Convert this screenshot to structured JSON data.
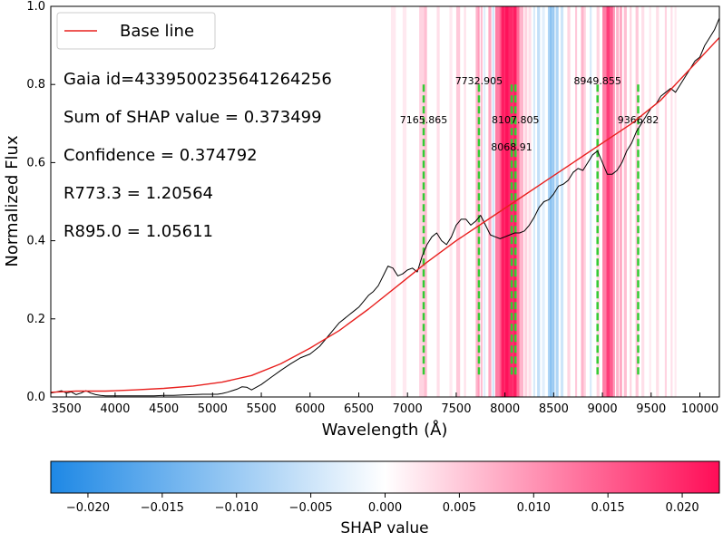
{
  "chart_data": {
    "type": "line",
    "xlabel": "Wavelength (Å)",
    "ylabel": "Normalized Flux",
    "xlim": [
      3340,
      10200
    ],
    "ylim": [
      0.0,
      1.0
    ],
    "x_ticks": [
      3500,
      4000,
      4500,
      5000,
      5500,
      6000,
      6500,
      7000,
      7500,
      8000,
      8500,
      9000,
      9500,
      10000
    ],
    "y_ticks": [
      0.0,
      0.2,
      0.4,
      0.6,
      0.8,
      1.0
    ],
    "y_tick_labels": [
      "0.0",
      "0.2",
      "0.4",
      "0.6",
      "0.8",
      "1.0"
    ],
    "legend": {
      "location": "top-left",
      "entries": [
        {
          "label": "Base line",
          "color": "#e8201e"
        }
      ]
    },
    "annotations": [
      {
        "key": "gaia",
        "text": "Gaia id=4339500235641264256"
      },
      {
        "key": "shap_sum",
        "text": "Sum of SHAP value = 0.373499"
      },
      {
        "key": "confidence",
        "text": "Confidence = 0.374792"
      },
      {
        "key": "r773",
        "text": "R773.3 = 1.20564"
      },
      {
        "key": "r895",
        "text": "R895.0 = 1.05611"
      }
    ],
    "marker_lines": [
      {
        "x": 7165.865,
        "label": "7165.865",
        "label_y": 0.71
      },
      {
        "x": 7732.905,
        "label": "7732.905",
        "label_y": 0.81
      },
      {
        "x": 8107.805,
        "label": "8107.805",
        "label_y": 0.71
      },
      {
        "x": 8068.91,
        "label": "8068.91",
        "label_y": 0.64
      },
      {
        "x": 8949.855,
        "label": "8949.855",
        "label_y": 0.81
      },
      {
        "x": 9366.82,
        "label": "9366.82",
        "label_y": 0.71
      }
    ],
    "marker_line_range": [
      0.05,
      0.8
    ],
    "series": [
      {
        "name": "Spectrum",
        "color": "#000000",
        "x": [
          3340,
          3400,
          3450,
          3500,
          3550,
          3600,
          3650,
          3700,
          3750,
          3800,
          3850,
          3900,
          3950,
          4000,
          4100,
          4200,
          4300,
          4400,
          4500,
          4600,
          4700,
          4800,
          4900,
          5000,
          5050,
          5100,
          5150,
          5200,
          5250,
          5300,
          5350,
          5400,
          5500,
          5600,
          5700,
          5800,
          5900,
          6000,
          6100,
          6200,
          6250,
          6300,
          6350,
          6400,
          6450,
          6500,
          6550,
          6600,
          6650,
          6700,
          6750,
          6800,
          6850,
          6900,
          6950,
          7000,
          7050,
          7100,
          7150,
          7200,
          7250,
          7300,
          7350,
          7400,
          7450,
          7500,
          7550,
          7600,
          7650,
          7700,
          7750,
          7800,
          7850,
          7900,
          7950,
          8000,
          8050,
          8100,
          8150,
          8200,
          8250,
          8300,
          8350,
          8400,
          8450,
          8500,
          8550,
          8600,
          8650,
          8700,
          8750,
          8800,
          8850,
          8900,
          8950,
          9000,
          9050,
          9100,
          9150,
          9200,
          9250,
          9300,
          9350,
          9400,
          9450,
          9500,
          9550,
          9600,
          9650,
          9700,
          9750,
          9800,
          9850,
          9900,
          9950,
          10000,
          10050,
          10100,
          10150,
          10200
        ],
        "y": [
          0.01,
          0.013,
          0.016,
          0.01,
          0.013,
          0.006,
          0.01,
          0.016,
          0.01,
          0.006,
          0.004,
          0.003,
          0.003,
          0.003,
          0.003,
          0.003,
          0.003,
          0.003,
          0.004,
          0.004,
          0.005,
          0.006,
          0.007,
          0.007,
          0.007,
          0.009,
          0.012,
          0.016,
          0.02,
          0.026,
          0.025,
          0.018,
          0.032,
          0.05,
          0.068,
          0.085,
          0.1,
          0.11,
          0.13,
          0.16,
          0.175,
          0.19,
          0.2,
          0.21,
          0.22,
          0.23,
          0.245,
          0.26,
          0.27,
          0.285,
          0.31,
          0.335,
          0.33,
          0.31,
          0.315,
          0.325,
          0.33,
          0.32,
          0.36,
          0.39,
          0.41,
          0.42,
          0.4,
          0.39,
          0.41,
          0.44,
          0.455,
          0.455,
          0.44,
          0.45,
          0.465,
          0.44,
          0.415,
          0.41,
          0.405,
          0.41,
          0.415,
          0.42,
          0.42,
          0.425,
          0.44,
          0.46,
          0.485,
          0.5,
          0.505,
          0.52,
          0.54,
          0.545,
          0.555,
          0.575,
          0.585,
          0.58,
          0.6,
          0.62,
          0.63,
          0.6,
          0.57,
          0.57,
          0.58,
          0.6,
          0.63,
          0.65,
          0.68,
          0.7,
          0.72,
          0.74,
          0.75,
          0.77,
          0.78,
          0.79,
          0.78,
          0.8,
          0.82,
          0.84,
          0.86,
          0.87,
          0.9,
          0.92,
          0.94,
          0.97
        ]
      },
      {
        "name": "Base line",
        "color": "#e8201e",
        "x": [
          3340,
          3600,
          3900,
          4200,
          4500,
          4800,
          5100,
          5400,
          5700,
          6000,
          6300,
          6600,
          6900,
          7200,
          7500,
          7800,
          8100,
          8400,
          8700,
          9000,
          9300,
          9600,
          9900,
          10200
        ],
        "y": [
          0.012,
          0.015,
          0.015,
          0.018,
          0.022,
          0.028,
          0.038,
          0.055,
          0.085,
          0.125,
          0.17,
          0.225,
          0.285,
          0.345,
          0.4,
          0.45,
          0.5,
          0.55,
          0.6,
          0.65,
          0.7,
          0.76,
          0.84,
          0.92
        ]
      }
    ],
    "shap_bands": [
      {
        "x0": 6830,
        "x1": 6880,
        "v": 0.002
      },
      {
        "x0": 6950,
        "x1": 6990,
        "v": 0.002
      },
      {
        "x0": 7120,
        "x1": 7170,
        "v": 0.004
      },
      {
        "x0": 7170,
        "x1": 7200,
        "v": 0.006
      },
      {
        "x0": 7300,
        "x1": 7330,
        "v": 0.003
      },
      {
        "x0": 7430,
        "x1": 7460,
        "v": 0.002
      },
      {
        "x0": 7500,
        "x1": 7540,
        "v": 0.005
      },
      {
        "x0": 7580,
        "x1": 7600,
        "v": 0.003
      },
      {
        "x0": 7700,
        "x1": 7720,
        "v": 0.007
      },
      {
        "x0": 7720,
        "x1": 7740,
        "v": 0.009
      },
      {
        "x0": 7750,
        "x1": 7770,
        "v": 0.006
      },
      {
        "x0": 7780,
        "x1": 7800,
        "v": -0.003
      },
      {
        "x0": 7830,
        "x1": 7860,
        "v": 0.008
      },
      {
        "x0": 7870,
        "x1": 7890,
        "v": -0.005
      },
      {
        "x0": 7900,
        "x1": 7940,
        "v": 0.012
      },
      {
        "x0": 7940,
        "x1": 7960,
        "v": 0.015
      },
      {
        "x0": 7960,
        "x1": 8000,
        "v": 0.021
      },
      {
        "x0": 8000,
        "x1": 8040,
        "v": 0.022
      },
      {
        "x0": 8040,
        "x1": 8080,
        "v": 0.02
      },
      {
        "x0": 8080,
        "x1": 8120,
        "v": 0.021
      },
      {
        "x0": 8120,
        "x1": 8150,
        "v": 0.014
      },
      {
        "x0": 8150,
        "x1": 8190,
        "v": 0.007
      },
      {
        "x0": 8200,
        "x1": 8230,
        "v": 0.004
      },
      {
        "x0": 8240,
        "x1": 8270,
        "v": 0.003
      },
      {
        "x0": 8290,
        "x1": 8310,
        "v": -0.004
      },
      {
        "x0": 8330,
        "x1": 8360,
        "v": -0.006
      },
      {
        "x0": 8380,
        "x1": 8410,
        "v": -0.003
      },
      {
        "x0": 8440,
        "x1": 8460,
        "v": -0.008
      },
      {
        "x0": 8460,
        "x1": 8480,
        "v": -0.012
      },
      {
        "x0": 8480,
        "x1": 8510,
        "v": -0.01
      },
      {
        "x0": 8520,
        "x1": 8550,
        "v": -0.008
      },
      {
        "x0": 8570,
        "x1": 8600,
        "v": -0.005
      },
      {
        "x0": 8640,
        "x1": 8670,
        "v": 0.004
      },
      {
        "x0": 8720,
        "x1": 8740,
        "v": 0.005
      },
      {
        "x0": 8780,
        "x1": 8810,
        "v": 0.007
      },
      {
        "x0": 8810,
        "x1": 8830,
        "v": 0.004
      },
      {
        "x0": 8870,
        "x1": 8890,
        "v": -0.004
      },
      {
        "x0": 8940,
        "x1": 8970,
        "v": 0.004
      },
      {
        "x0": 9000,
        "x1": 9040,
        "v": 0.012
      },
      {
        "x0": 9040,
        "x1": 9080,
        "v": 0.018
      },
      {
        "x0": 9080,
        "x1": 9110,
        "v": 0.015
      },
      {
        "x0": 9110,
        "x1": 9130,
        "v": 0.009
      },
      {
        "x0": 9140,
        "x1": 9170,
        "v": 0.007
      },
      {
        "x0": 9180,
        "x1": 9200,
        "v": 0.01
      },
      {
        "x0": 9220,
        "x1": 9250,
        "v": 0.006
      },
      {
        "x0": 9280,
        "x1": 9300,
        "v": 0.004
      },
      {
        "x0": 9340,
        "x1": 9370,
        "v": 0.005
      },
      {
        "x0": 9400,
        "x1": 9430,
        "v": 0.003
      },
      {
        "x0": 9480,
        "x1": 9500,
        "v": 0.002
      },
      {
        "x0": 9550,
        "x1": 9580,
        "v": 0.003
      },
      {
        "x0": 9640,
        "x1": 9660,
        "v": 0.004
      },
      {
        "x0": 9700,
        "x1": 9720,
        "v": 0.003
      },
      {
        "x0": 9740,
        "x1": 9760,
        "v": 0.002
      }
    ],
    "colorbar": {
      "label": "SHAP value",
      "vmin": -0.0225,
      "vmax": 0.0225,
      "ticks": [
        -0.02,
        -0.015,
        -0.01,
        -0.005,
        0.0,
        0.005,
        0.01,
        0.015,
        0.02
      ],
      "tick_labels": [
        "−0.020",
        "−0.015",
        "−0.010",
        "−0.005",
        "0.000",
        "0.005",
        "0.010",
        "0.015",
        "0.020"
      ],
      "neg_color": "#1e88e5",
      "pos_color": "#ff0d57",
      "mid_color": "#ffffff"
    },
    "colors": {
      "marker_line": "#33cc33",
      "spectrum": "#000000",
      "baseline": "#e8201e"
    }
  }
}
